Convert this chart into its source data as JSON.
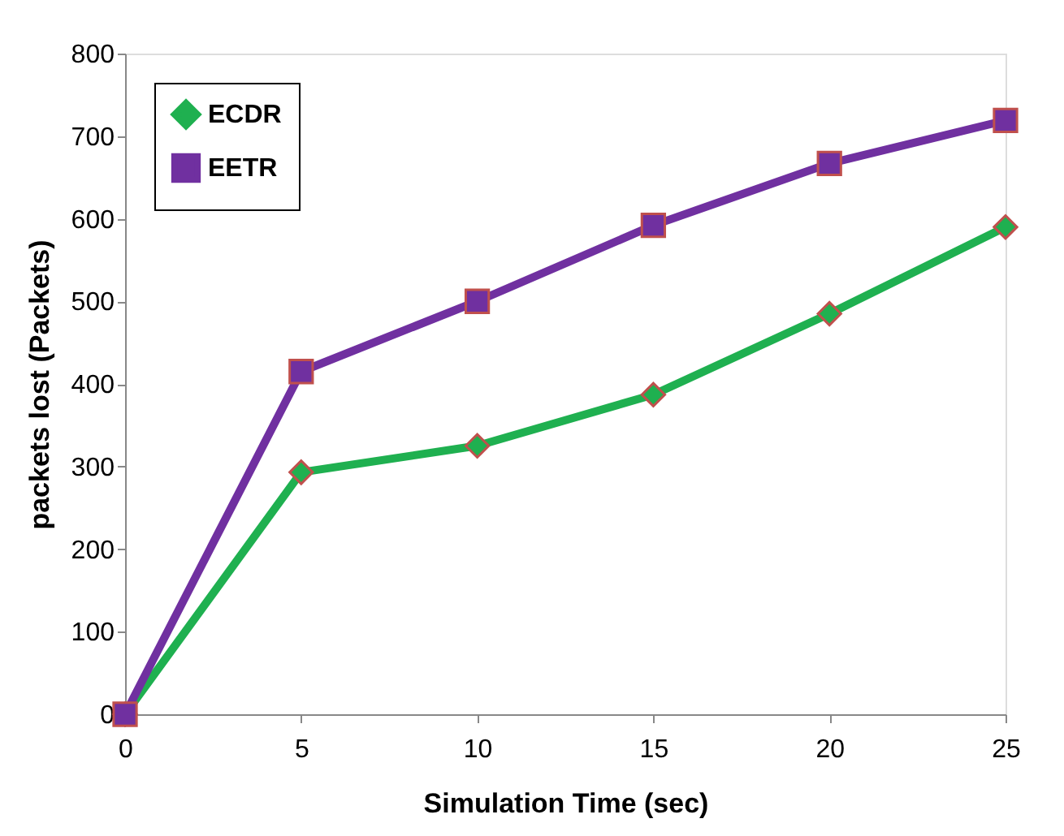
{
  "chart_data": {
    "type": "line",
    "xlabel": "Simulation Time (sec)",
    "ylabel": "packets lost (Packets)",
    "x": [
      0,
      5,
      10,
      15,
      20,
      25
    ],
    "series": [
      {
        "name": "ECDR",
        "color": "#1fb050",
        "marker": "diamond",
        "values": [
          0,
          293,
          325,
          387,
          485,
          590
        ]
      },
      {
        "name": "EETR",
        "color": "#7030a0",
        "marker": "square",
        "values": [
          0,
          415,
          500,
          592,
          667,
          719
        ]
      }
    ],
    "xlim": [
      0,
      25
    ],
    "xticks": [
      0,
      5,
      10,
      15,
      20,
      25
    ],
    "ylim": [
      0,
      800
    ],
    "yticks": [
      0,
      100,
      200,
      300,
      400,
      500,
      600,
      700,
      800
    ],
    "grid": false,
    "legend": "top left"
  }
}
